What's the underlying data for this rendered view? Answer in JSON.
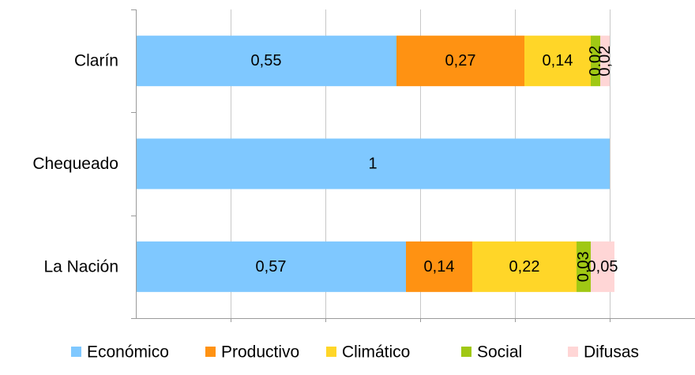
{
  "chart_data": {
    "type": "bar",
    "orientation": "horizontal",
    "stacked": true,
    "categories": [
      "Clarín",
      "Chequeado",
      "La Nación"
    ],
    "series": [
      {
        "name": "Económico",
        "color": "#7fc8ff",
        "values": [
          0.55,
          1,
          0.57
        ],
        "labels": [
          "0,55",
          "1",
          "0,57"
        ]
      },
      {
        "name": "Productivo",
        "color": "#ff9212",
        "values": [
          0.27,
          0,
          0.14
        ],
        "labels": [
          "0,27",
          "",
          "0,14"
        ]
      },
      {
        "name": "Climático",
        "color": "#ffd628",
        "values": [
          0.14,
          0,
          0.22
        ],
        "labels": [
          "0,14",
          "",
          "0,22"
        ]
      },
      {
        "name": "Social",
        "color": "#a0c814",
        "values": [
          0.02,
          0,
          0.03
        ],
        "labels": [
          "0,02",
          "",
          "0,03"
        ]
      },
      {
        "name": "Difusas",
        "color": "#ffd6d6",
        "values": [
          0.02,
          0,
          0.05
        ],
        "labels": [
          "0,02",
          "",
          "0,05"
        ]
      }
    ],
    "xlim": [
      0,
      1.2
    ],
    "grid": true,
    "legend": "bottom",
    "title": "",
    "xlabel": "",
    "ylabel": ""
  }
}
